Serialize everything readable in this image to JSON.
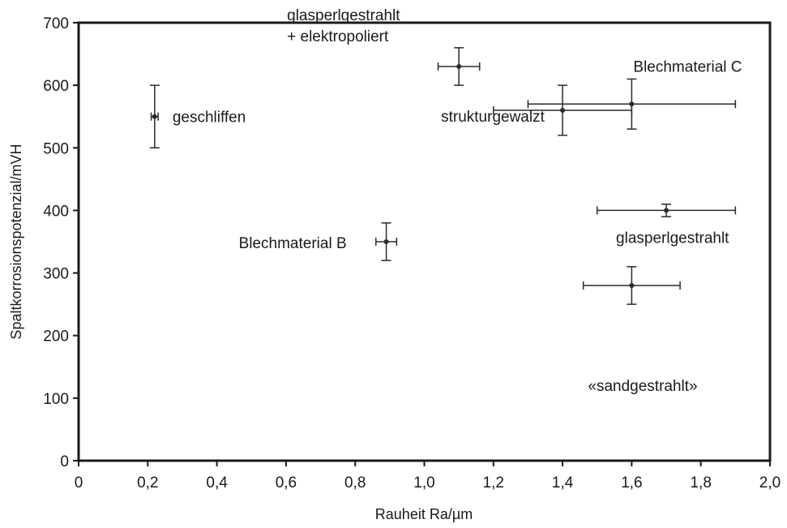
{
  "chart_data": {
    "type": "scatter",
    "title": "",
    "xlabel": "Rauheit Ra/µm",
    "ylabel": "Spaltkorrosionspotenzial/mVH",
    "xlim": [
      0,
      2.0
    ],
    "ylim": [
      0,
      700
    ],
    "grid": false,
    "xticks": [
      "0",
      "0,2",
      "0,4",
      "0,6",
      "0,8",
      "1,0",
      "1,2",
      "1,4",
      "1,6",
      "1,8",
      "2,0"
    ],
    "yticks": [
      "0",
      "100",
      "200",
      "300",
      "400",
      "500",
      "600",
      "700"
    ],
    "points": [
      {
        "label": [
          "geschliffen"
        ],
        "x": 0.22,
        "y": 550,
        "xerr": [
          0.21,
          0.23
        ],
        "yerr": [
          500,
          600
        ]
      },
      {
        "label": [
          "glasperlgestrahlt",
          "+ elektropoliert"
        ],
        "x": 1.1,
        "y": 630,
        "xerr": [
          1.04,
          1.16
        ],
        "yerr": [
          600,
          660
        ]
      },
      {
        "label": [
          "strukturgewalzt"
        ],
        "x": 1.4,
        "y": 560,
        "xerr": [
          1.2,
          1.6
        ],
        "yerr": [
          520,
          600
        ]
      },
      {
        "label": [
          "Blechmaterial C"
        ],
        "x": 1.6,
        "y": 570,
        "xerr": [
          1.3,
          1.9
        ],
        "yerr": [
          530,
          610
        ]
      },
      {
        "label": [
          "glasperlgestrahlt"
        ],
        "x": 1.7,
        "y": 400,
        "xerr": [
          1.5,
          1.9
        ],
        "yerr": [
          390,
          410
        ]
      },
      {
        "label": [
          "«sandgestrahlt»"
        ],
        "x": 1.6,
        "y": 280,
        "xerr": [
          1.46,
          1.74
        ],
        "yerr": [
          250,
          310
        ]
      },
      {
        "label": [
          "Blechmaterial B"
        ],
        "x": 0.89,
        "y": 350,
        "xerr": [
          0.86,
          0.92
        ],
        "yerr": [
          320,
          380
        ]
      }
    ]
  }
}
